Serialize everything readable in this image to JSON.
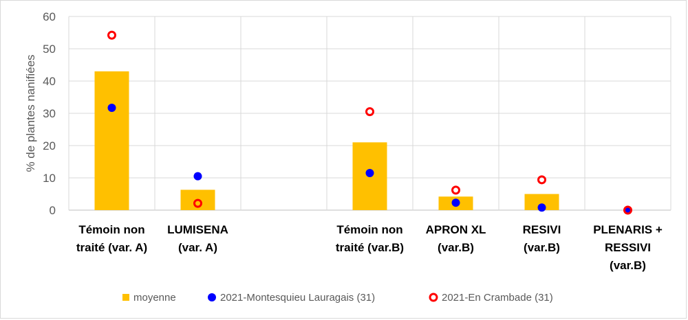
{
  "chart_data": {
    "type": "bar",
    "ylabel": "% de plantes nanifiées",
    "ylim": [
      0,
      60
    ],
    "yticks": [
      0,
      10,
      20,
      30,
      40,
      50,
      60
    ],
    "grid": true,
    "legend_position": "bottom",
    "categories": [
      [
        "Témoin non",
        "traité (var. A)"
      ],
      [
        "LUMISENA",
        "(var. A)"
      ],
      [
        ""
      ],
      [
        "Témoin non",
        "traité (var.B)"
      ],
      [
        "APRON XL",
        "(var.B)"
      ],
      [
        "RESIVI",
        "(var.B)"
      ],
      [
        "PLENARIS +",
        "RESSIVI",
        "(var.B)"
      ]
    ],
    "series": [
      {
        "name": "moyenne",
        "kind": "bar",
        "color": "#FFC000",
        "values": [
          43,
          6.3,
          null,
          21,
          4.2,
          5,
          0
        ]
      },
      {
        "name": "2021-Montesquieu Lauragais (31)",
        "kind": "dot",
        "color": "#0000FF",
        "values": [
          31.7,
          10.5,
          null,
          11.5,
          2.3,
          0.8,
          0
        ]
      },
      {
        "name": "2021-En Crambade (31)",
        "kind": "ring",
        "color": "#FF0000",
        "values": [
          54.2,
          2.1,
          null,
          30.5,
          6.2,
          9.4,
          0
        ]
      }
    ]
  }
}
